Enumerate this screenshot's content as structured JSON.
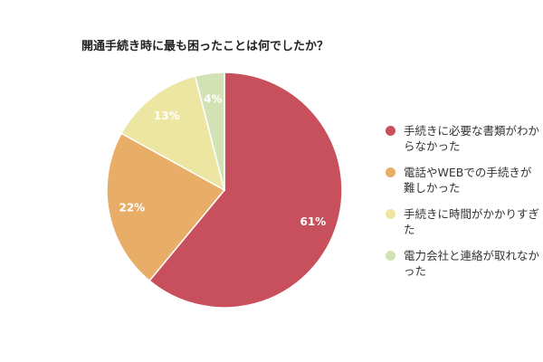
{
  "chart_data": {
    "type": "pie",
    "title": "開通手続き時に最も困ったことは何でしたか？",
    "categories": [
      "手続きに必要な書類がわからなかった",
      "電話やWEBでの手続きが難しかった",
      "手続きに時間がかかりすぎた",
      "電力会社と連絡が取れなかった"
    ],
    "values": [
      61,
      22,
      13,
      4
    ],
    "labels": [
      "61%",
      "22%",
      "13%",
      "4%"
    ],
    "colors": [
      "#c8505d",
      "#e8ae68",
      "#ede6a2",
      "#d3e2b4"
    ],
    "legend_position": "right"
  }
}
